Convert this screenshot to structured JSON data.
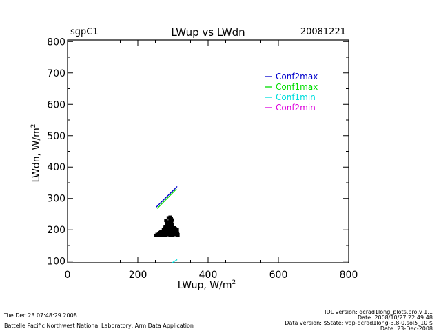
{
  "header": {
    "site": "sgpC1",
    "title": "LWup vs LWdn",
    "date": "20081221"
  },
  "footer": {
    "timestamp": "Tue Dec 23 07:48:29 2008",
    "org": "Battelle Pacific Northwest National Laboratory, Arm Data Application",
    "idl_version": "IDL version: qcrad1long_plots.pro,v 1.1",
    "idl_date": "Date: 2008/10/27 22:49:48",
    "data_version": "Data version: $State: vap-qcrad1long-3.8-0.sol5_10 $",
    "data_date": "Date: 23-Dec-2008"
  },
  "chart_data": {
    "type": "scatter",
    "title": "LWup vs LWdn",
    "xlabel": "LWup, W/m",
    "xlabel_sup": "2",
    "ylabel": "LWdn, W/m",
    "ylabel_sup": "2",
    "xlim": [
      0,
      800
    ],
    "ylim": [
      95,
      805
    ],
    "xticks": [
      0,
      200,
      400,
      600,
      800
    ],
    "yticks": [
      100,
      200,
      300,
      400,
      500,
      600,
      700,
      800
    ],
    "grid": false,
    "legend_position": "top-right",
    "series": [
      {
        "name": "Conf2max",
        "color": "#0000cc",
        "kind": "line",
        "points": [
          [
            252,
            272
          ],
          [
            312,
            338
          ]
        ]
      },
      {
        "name": "Conf1max",
        "color": "#00dd00",
        "kind": "line",
        "points": [
          [
            255,
            268
          ],
          [
            310,
            330
          ]
        ]
      },
      {
        "name": "Conf1min",
        "color": "#00dddd",
        "kind": "line",
        "points": [
          [
            298,
            95
          ],
          [
            312,
            105
          ]
        ]
      },
      {
        "name": "Conf2min",
        "color": "#dd00dd",
        "kind": "line",
        "points": []
      }
    ],
    "scatter": {
      "color": "#000000",
      "points": [
        [
          252,
          182
        ],
        [
          255,
          185
        ],
        [
          258,
          183
        ],
        [
          262,
          186
        ],
        [
          265,
          184
        ],
        [
          268,
          188
        ],
        [
          270,
          186
        ],
        [
          272,
          183
        ],
        [
          275,
          185
        ],
        [
          278,
          187
        ],
        [
          280,
          184
        ],
        [
          283,
          188
        ],
        [
          285,
          186
        ],
        [
          288,
          190
        ],
        [
          290,
          185
        ],
        [
          292,
          183
        ],
        [
          295,
          187
        ],
        [
          298,
          184
        ],
        [
          300,
          186
        ],
        [
          303,
          189
        ],
        [
          305,
          185
        ],
        [
          308,
          188
        ],
        [
          310,
          192
        ],
        [
          312,
          186
        ],
        [
          314,
          184
        ],
        [
          270,
          195
        ],
        [
          273,
          200
        ],
        [
          276,
          205
        ],
        [
          278,
          210
        ],
        [
          280,
          198
        ],
        [
          282,
          215
        ],
        [
          284,
          220
        ],
        [
          283,
          208
        ],
        [
          286,
          212
        ],
        [
          288,
          218
        ],
        [
          290,
          225
        ],
        [
          292,
          230
        ],
        [
          294,
          235
        ],
        [
          295,
          222
        ],
        [
          296,
          228
        ],
        [
          297,
          215
        ],
        [
          298,
          210
        ],
        [
          299,
          205
        ],
        [
          300,
          200
        ],
        [
          302,
          198
        ],
        [
          304,
          202
        ],
        [
          306,
          195
        ],
        [
          308,
          199
        ],
        [
          310,
          196
        ],
        [
          312,
          200
        ],
        [
          265,
          190
        ],
        [
          268,
          195
        ],
        [
          272,
          192
        ],
        [
          276,
          196
        ],
        [
          279,
          193
        ],
        [
          281,
          200
        ],
        [
          285,
          198
        ],
        [
          289,
          195
        ],
        [
          293,
          200
        ],
        [
          297,
          196
        ],
        [
          301,
          192
        ],
        [
          305,
          197
        ],
        [
          309,
          193
        ],
        [
          313,
          189
        ],
        [
          286,
          205
        ],
        [
          288,
          210
        ],
        [
          291,
          212
        ],
        [
          294,
          208
        ],
        [
          296,
          204
        ],
        [
          299,
          201
        ],
        [
          303,
          206
        ],
        [
          307,
          203
        ],
        [
          311,
          199
        ],
        [
          260,
          188
        ],
        [
          263,
          191
        ],
        [
          266,
          193
        ],
        [
          280,
          230
        ],
        [
          282,
          225
        ],
        [
          287,
          238
        ],
        [
          292,
          240
        ],
        [
          295,
          236
        ],
        [
          298,
          231
        ]
      ]
    }
  }
}
